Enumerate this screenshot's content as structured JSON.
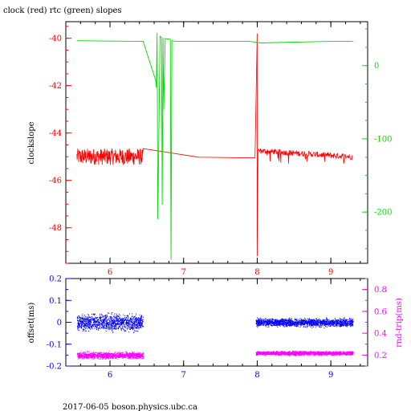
{
  "title": "clock (red) rtc (green) slopes",
  "footer": "2017-06-05 boson.physics.ubc.ca",
  "colors": {
    "clock": "#ff0000",
    "rtc": "#00dd00",
    "offset": "#0000ff",
    "rtt": "#ff00ff",
    "frame": "#000000"
  },
  "chart_data": [
    {
      "type": "line",
      "title": "clock (red) rtc (green) slopes",
      "ylabel": "clockslope",
      "xlim": [
        5.4,
        9.5
      ],
      "ylim": [
        -49.5,
        -39.3
      ],
      "y2lim": [
        -270,
        60
      ],
      "x_ticks": [
        6,
        7,
        8,
        9
      ],
      "y_ticks": [
        -48,
        -46,
        -44,
        -42,
        -40
      ],
      "y2_ticks": [
        -200,
        -100,
        0
      ],
      "grid": false,
      "series": [
        {
          "name": "clock",
          "axis": "left",
          "x": [
            5.55,
            6.5,
            7.0,
            7.2,
            7.5,
            7.97,
            8.0,
            8.0,
            8.0,
            8.03,
            8.3,
            8.6,
            9.0,
            9.3
          ],
          "y": [
            -45.0,
            -45.0,
            -45.0,
            -45.1,
            -45.1,
            -45.1,
            -39.8,
            -49.2,
            -44.8,
            -44.7,
            -44.8,
            -44.9,
            -45.0,
            -45.0
          ]
        },
        {
          "name": "rtc",
          "axis": "right",
          "x": [
            5.55,
            6.45,
            6.62,
            6.63,
            6.64,
            6.65,
            6.68,
            6.7,
            6.71,
            6.72,
            6.73,
            6.75,
            6.82,
            6.83,
            6.84,
            6.9,
            7.5,
            7.9,
            8.05,
            8.5,
            9.0,
            9.3
          ],
          "y": [
            34,
            33,
            -20,
            -30,
            45,
            -210,
            40,
            38,
            -190,
            38,
            -60,
            37,
            36,
            -265,
            34,
            33,
            33,
            33,
            31,
            32,
            33,
            33
          ]
        }
      ]
    },
    {
      "type": "scatter",
      "ylabel": "offset(ms)",
      "y2label": "rnd-trip(ms)",
      "xlim": [
        5.4,
        9.5
      ],
      "ylim": [
        -0.2,
        0.2
      ],
      "y2lim": [
        0.1,
        0.9
      ],
      "x_ticks": [
        6,
        7,
        8,
        9
      ],
      "y_ticks": [
        -0.2,
        -0.1,
        0,
        0.1,
        0.2
      ],
      "y2_ticks": [
        0.2,
        0.4,
        0.6,
        0.8
      ],
      "grid": false,
      "series": [
        {
          "name": "offset",
          "axis": "left",
          "segments": [
            [
              5.55,
              6.45,
              0.0,
              0.025
            ],
            [
              7.98,
              9.3,
              0.0,
              0.012
            ]
          ]
        },
        {
          "name": "rnd-trip",
          "axis": "right",
          "segments": [
            [
              5.55,
              6.45,
              0.2,
              0.02
            ],
            [
              7.98,
              9.3,
              0.22,
              0.012
            ]
          ]
        }
      ]
    }
  ]
}
